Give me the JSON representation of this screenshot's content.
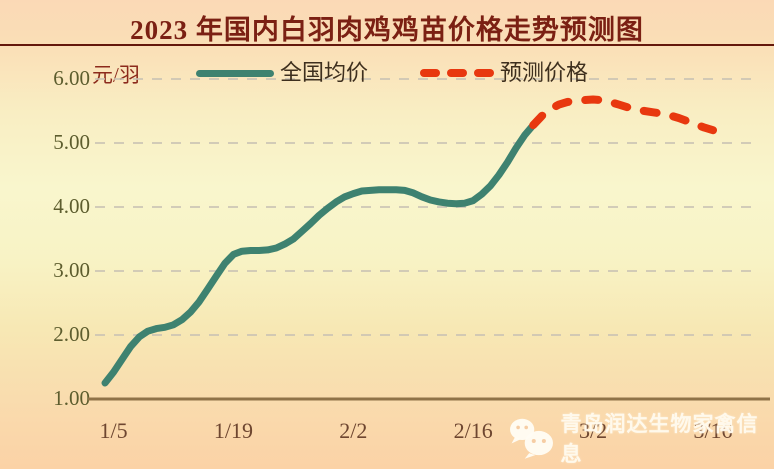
{
  "header": {
    "title": "2023 年国内白羽肉鸡鸡苗价格走势预测图"
  },
  "unit_label": "元/羽",
  "legend": [
    {
      "label": "全国均价",
      "color": "#3e8270",
      "style": "solid"
    },
    {
      "label": "预测价格",
      "color": "#e8380f",
      "style": "dashed"
    }
  ],
  "watermark": {
    "text": "青岛润达生物家禽信息",
    "icon": "wechat-icon"
  },
  "colors": {
    "title_text": "#7b2013",
    "actual_line": "#3e8270",
    "forecast_line": "#e8380f",
    "gridline": "#c9c2b4",
    "axis_line": "#8f7248",
    "y_tick_text": "#5d5d2e",
    "x_tick_text": "#6e4630"
  },
  "chart_data": {
    "type": "line",
    "title": "2023 年国内白羽肉鸡鸡苗价格走势预测图",
    "xlabel": "",
    "ylabel": "元/羽",
    "ylim": [
      1.0,
      6.0
    ],
    "y_ticks": [
      {
        "label": "1.00",
        "value": 1.0
      },
      {
        "label": "2.00",
        "value": 2.0
      },
      {
        "label": "3.00",
        "value": 3.0
      },
      {
        "label": "4.00",
        "value": 4.0
      },
      {
        "label": "5.00",
        "value": 5.0
      },
      {
        "label": "6.00",
        "value": 6.0
      }
    ],
    "x_ticks": [
      {
        "label": "1/5",
        "day": 1
      },
      {
        "label": "1/19",
        "day": 15
      },
      {
        "label": "2/2",
        "day": 29
      },
      {
        "label": "2/16",
        "day": 43
      },
      {
        "label": "3/2",
        "day": 57
      },
      {
        "label": "3/16",
        "day": 71
      }
    ],
    "grid": "horizontal-dashed",
    "legend_position": "top",
    "series": [
      {
        "name": "全国均价",
        "color": "#3e8270",
        "style": "solid",
        "points": [
          [
            0,
            1.25
          ],
          [
            1,
            1.42
          ],
          [
            2,
            1.62
          ],
          [
            3,
            1.82
          ],
          [
            4,
            1.97
          ],
          [
            5,
            2.06
          ],
          [
            6,
            2.1
          ],
          [
            7,
            2.12
          ],
          [
            8,
            2.16
          ],
          [
            9,
            2.24
          ],
          [
            10,
            2.36
          ],
          [
            11,
            2.52
          ],
          [
            12,
            2.72
          ],
          [
            13,
            2.92
          ],
          [
            14,
            3.12
          ],
          [
            15,
            3.26
          ],
          [
            16,
            3.31
          ],
          [
            17,
            3.32
          ],
          [
            18,
            3.32
          ],
          [
            19,
            3.33
          ],
          [
            20,
            3.36
          ],
          [
            21,
            3.42
          ],
          [
            22,
            3.5
          ],
          [
            23,
            3.62
          ],
          [
            24,
            3.74
          ],
          [
            25,
            3.87
          ],
          [
            26,
            3.98
          ],
          [
            27,
            4.08
          ],
          [
            28,
            4.16
          ],
          [
            29,
            4.21
          ],
          [
            30,
            4.25
          ],
          [
            31,
            4.26
          ],
          [
            32,
            4.27
          ],
          [
            33,
            4.27
          ],
          [
            34,
            4.27
          ],
          [
            35,
            4.26
          ],
          [
            36,
            4.22
          ],
          [
            37,
            4.16
          ],
          [
            38,
            4.11
          ],
          [
            39,
            4.08
          ],
          [
            40,
            4.06
          ],
          [
            41,
            4.05
          ],
          [
            42,
            4.06
          ],
          [
            43,
            4.1
          ],
          [
            44,
            4.2
          ],
          [
            45,
            4.33
          ],
          [
            46,
            4.5
          ],
          [
            47,
            4.7
          ],
          [
            48,
            4.92
          ],
          [
            49,
            5.12
          ],
          [
            50,
            5.28
          ]
        ]
      },
      {
        "name": "预测价格",
        "color": "#e8380f",
        "style": "dashed",
        "points": [
          [
            50,
            5.28
          ],
          [
            51,
            5.42
          ],
          [
            52,
            5.53
          ],
          [
            53,
            5.6
          ],
          [
            54,
            5.64
          ],
          [
            55,
            5.66
          ],
          [
            56,
            5.67
          ],
          [
            57,
            5.68
          ],
          [
            58,
            5.67
          ],
          [
            59,
            5.64
          ],
          [
            60,
            5.6
          ],
          [
            61,
            5.56
          ],
          [
            62,
            5.52
          ],
          [
            63,
            5.5
          ],
          [
            64,
            5.48
          ],
          [
            65,
            5.46
          ],
          [
            66,
            5.43
          ],
          [
            67,
            5.39
          ],
          [
            68,
            5.34
          ],
          [
            69,
            5.29
          ],
          [
            70,
            5.24
          ],
          [
            71,
            5.2
          ]
        ]
      }
    ]
  }
}
